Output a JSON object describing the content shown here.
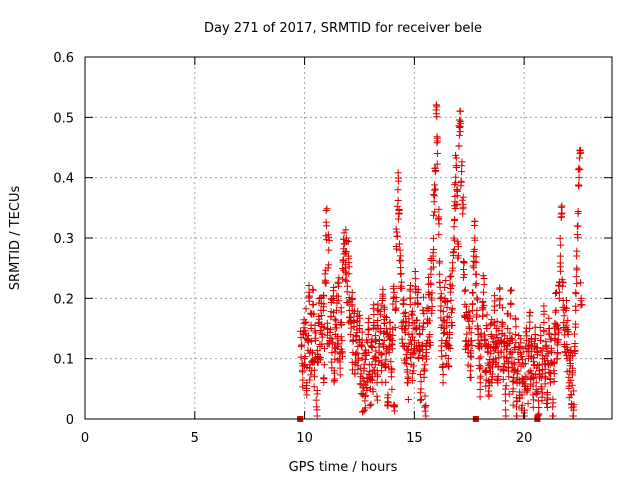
{
  "chart_data": {
    "type": "scatter",
    "title": "Day 271 of 2017, SRMTID for receiver bele",
    "xlabel": "GPS time / hours",
    "ylabel": "SRMTID / TECUs",
    "xlim": [
      0,
      24
    ],
    "ylim": [
      0,
      0.6
    ],
    "xticks": [
      0,
      5,
      10,
      15,
      20
    ],
    "yticks": [
      0,
      0.1,
      0.2,
      0.3,
      0.4,
      0.5,
      0.6
    ],
    "xtick_labels": [
      "0",
      "5",
      "10",
      "15",
      "20"
    ],
    "ytick_labels": [
      "0",
      "0.1",
      "0.2",
      "0.3",
      "0.4",
      "0.5",
      "0.6"
    ],
    "grid": true,
    "series": [
      {
        "name": "SRMTID",
        "marker": "+",
        "color": "#dd0000",
        "x_range": [
          9.8,
          22.6
        ],
        "typical_range": [
          0.03,
          0.22
        ],
        "note": "dense cloud of points; approximate values sampled below",
        "points": [
          [
            9.85,
            0.12
          ],
          [
            9.9,
            0.08
          ],
          [
            9.95,
            0.14
          ],
          [
            10.0,
            0.1
          ],
          [
            10.05,
            0.16
          ],
          [
            10.1,
            0.06
          ],
          [
            10.15,
            0.13
          ],
          [
            10.2,
            0.21
          ],
          [
            10.25,
            0.09
          ],
          [
            10.3,
            0.15
          ],
          [
            10.35,
            0.11
          ],
          [
            10.4,
            0.19
          ],
          [
            10.45,
            0.07
          ],
          [
            10.5,
            0.13
          ],
          [
            10.55,
            0.02
          ],
          [
            10.6,
            0.1
          ],
          [
            10.65,
            0.17
          ],
          [
            10.7,
            0.12
          ],
          [
            10.75,
            0.2
          ],
          [
            10.8,
            0.14
          ],
          [
            10.85,
            0.18
          ],
          [
            10.9,
            0.09
          ],
          [
            10.95,
            0.23
          ],
          [
            11.0,
            0.32
          ],
          [
            11.05,
            0.15
          ],
          [
            11.1,
            0.28
          ],
          [
            11.15,
            0.13
          ],
          [
            11.2,
            0.17
          ],
          [
            11.25,
            0.11
          ],
          [
            11.3,
            0.2
          ],
          [
            11.35,
            0.08
          ],
          [
            11.4,
            0.14
          ],
          [
            11.45,
            0.18
          ],
          [
            11.5,
            0.12
          ],
          [
            11.55,
            0.22
          ],
          [
            11.6,
            0.1
          ],
          [
            11.65,
            0.16
          ],
          [
            11.7,
            0.13
          ],
          [
            11.75,
            0.26
          ],
          [
            11.8,
            0.29
          ],
          [
            11.85,
            0.25
          ],
          [
            11.9,
            0.3
          ],
          [
            11.95,
            0.22
          ],
          [
            12.0,
            0.27
          ],
          [
            12.05,
            0.18
          ],
          [
            12.1,
            0.14
          ],
          [
            12.15,
            0.2
          ],
          [
            12.2,
            0.11
          ],
          [
            12.25,
            0.16
          ],
          [
            12.3,
            0.09
          ],
          [
            12.35,
            0.13
          ],
          [
            12.4,
            0.17
          ],
          [
            12.45,
            0.1
          ],
          [
            12.5,
            0.15
          ],
          [
            12.55,
            0.07
          ],
          [
            12.6,
            0.12
          ],
          [
            12.65,
            0.04
          ],
          [
            12.7,
            0.08
          ],
          [
            12.75,
            0.03
          ],
          [
            12.8,
            0.11
          ],
          [
            12.85,
            0.06
          ],
          [
            12.9,
            0.14
          ],
          [
            12.95,
            0.09
          ],
          [
            13.0,
            0.05
          ],
          [
            13.05,
            0.12
          ],
          [
            13.1,
            0.07
          ],
          [
            13.15,
            0.16
          ],
          [
            13.2,
            0.1
          ],
          [
            13.25,
            0.13
          ],
          [
            13.3,
            0.06
          ],
          [
            13.35,
            0.18
          ],
          [
            13.4,
            0.11
          ],
          [
            13.45,
            0.15
          ],
          [
            13.5,
            0.08
          ],
          [
            13.55,
            0.2
          ],
          [
            13.6,
            0.12
          ],
          [
            13.65,
            0.17
          ],
          [
            13.7,
            0.09
          ],
          [
            13.75,
            0.14
          ],
          [
            13.8,
            0.04
          ],
          [
            13.85,
            0.11
          ],
          [
            13.9,
            0.16
          ],
          [
            13.95,
            0.07
          ],
          [
            14.0,
            0.13
          ],
          [
            14.05,
            0.2
          ],
          [
            14.1,
            0.02
          ],
          [
            14.15,
            0.18
          ],
          [
            14.2,
            0.31
          ],
          [
            14.25,
            0.38
          ],
          [
            14.3,
            0.34
          ],
          [
            14.35,
            0.28
          ],
          [
            14.4,
            0.22
          ],
          [
            14.45,
            0.15
          ],
          [
            14.5,
            0.19
          ],
          [
            14.55,
            0.12
          ],
          [
            14.6,
            0.17
          ],
          [
            14.65,
            0.1
          ],
          [
            14.7,
            0.06
          ],
          [
            14.75,
            0.14
          ],
          [
            14.8,
            0.2
          ],
          [
            14.85,
            0.11
          ],
          [
            14.9,
            0.16
          ],
          [
            14.95,
            0.08
          ],
          [
            15.0,
            0.13
          ],
          [
            15.05,
            0.22
          ],
          [
            15.1,
            0.15
          ],
          [
            15.15,
            0.19
          ],
          [
            15.2,
            0.1
          ],
          [
            15.25,
            0.14
          ],
          [
            15.3,
            0.05
          ],
          [
            15.35,
            0.12
          ],
          [
            15.4,
            0.18
          ],
          [
            15.45,
            0.08
          ],
          [
            15.5,
            0.02
          ],
          [
            15.55,
            0.11
          ],
          [
            15.6,
            0.16
          ],
          [
            15.65,
            0.21
          ],
          [
            15.7,
            0.14
          ],
          [
            15.75,
            0.24
          ],
          [
            15.8,
            0.18
          ],
          [
            15.85,
            0.27
          ],
          [
            15.9,
            0.36
          ],
          [
            15.95,
            0.41
          ],
          [
            16.0,
            0.52
          ],
          [
            16.05,
            0.44
          ],
          [
            16.1,
            0.33
          ],
          [
            16.15,
            0.24
          ],
          [
            16.2,
            0.18
          ],
          [
            16.25,
            0.13
          ],
          [
            16.3,
            0.09
          ],
          [
            16.35,
            0.15
          ],
          [
            16.4,
            0.2
          ],
          [
            16.45,
            0.12
          ],
          [
            16.5,
            0.17
          ],
          [
            16.55,
            0.1
          ],
          [
            16.6,
            0.14
          ],
          [
            16.65,
            0.21
          ],
          [
            16.7,
            0.16
          ],
          [
            16.75,
            0.25
          ],
          [
            16.8,
            0.3
          ],
          [
            16.85,
            0.36
          ],
          [
            16.9,
            0.42
          ],
          [
            16.95,
            0.37
          ],
          [
            17.0,
            0.29
          ],
          [
            17.05,
            0.47
          ],
          [
            17.1,
            0.49
          ],
          [
            17.15,
            0.41
          ],
          [
            17.2,
            0.34
          ],
          [
            17.25,
            0.26
          ],
          [
            17.3,
            0.19
          ],
          [
            17.35,
            0.13
          ],
          [
            17.4,
            0.17
          ],
          [
            17.45,
            0.11
          ],
          [
            17.5,
            0.15
          ],
          [
            17.55,
            0.08
          ],
          [
            17.6,
            0.13
          ],
          [
            17.65,
            0.19
          ],
          [
            17.7,
            0.27
          ],
          [
            17.75,
            0.3
          ],
          [
            17.8,
            0.24
          ],
          [
            17.85,
            0.18
          ],
          [
            17.9,
            0.14
          ],
          [
            17.95,
            0.1
          ],
          [
            18.0,
            0.06
          ],
          [
            18.05,
            0.12
          ],
          [
            18.1,
            0.17
          ],
          [
            18.15,
            0.21
          ],
          [
            18.2,
            0.13
          ],
          [
            18.25,
            0.08
          ],
          [
            18.3,
            0.15
          ],
          [
            18.35,
            0.11
          ],
          [
            18.4,
            0.04
          ],
          [
            18.45,
            0.09
          ],
          [
            18.5,
            0.14
          ],
          [
            18.55,
            0.07
          ],
          [
            18.6,
            0.12
          ],
          [
            18.65,
            0.18
          ],
          [
            18.7,
            0.1
          ],
          [
            18.75,
            0.15
          ],
          [
            18.8,
            0.06
          ],
          [
            18.85,
            0.13
          ],
          [
            18.9,
            0.2
          ],
          [
            18.95,
            0.11
          ],
          [
            19.0,
            0.16
          ],
          [
            19.05,
            0.08
          ],
          [
            19.1,
            0.12
          ],
          [
            19.15,
            0.03
          ],
          [
            19.2,
            0.1
          ],
          [
            19.25,
            0.15
          ],
          [
            19.3,
            0.07
          ],
          [
            19.35,
            0.13
          ],
          [
            19.4,
            0.19
          ],
          [
            19.45,
            0.11
          ],
          [
            19.5,
            0.05
          ],
          [
            19.55,
            0.09
          ],
          [
            19.6,
            0.14
          ],
          [
            19.65,
            0.02
          ],
          [
            19.7,
            0.08
          ],
          [
            19.75,
            0.12
          ],
          [
            19.8,
            0.06
          ],
          [
            19.85,
            0.11
          ],
          [
            19.9,
            0.04
          ],
          [
            19.95,
            0.09
          ],
          [
            20.0,
            0.01
          ],
          [
            20.05,
            0.07
          ],
          [
            20.1,
            0.13
          ],
          [
            20.15,
            0.05
          ],
          [
            20.2,
            0.1
          ],
          [
            20.25,
            0.15
          ],
          [
            20.3,
            0.08
          ],
          [
            20.35,
            0.12
          ],
          [
            20.4,
            0.04
          ],
          [
            20.45,
            0.09
          ],
          [
            20.5,
            0.14
          ],
          [
            20.55,
            0.06
          ],
          [
            20.6,
            0.11
          ],
          [
            20.65,
            0.03
          ],
          [
            20.7,
            0.08
          ],
          [
            20.75,
            0.13
          ],
          [
            20.8,
            0.05
          ],
          [
            20.85,
            0.1
          ],
          [
            20.9,
            0.16
          ],
          [
            20.95,
            0.07
          ],
          [
            21.0,
            0.12
          ],
          [
            21.05,
            0.04
          ],
          [
            21.1,
            0.09
          ],
          [
            21.15,
            0.15
          ],
          [
            21.2,
            0.06
          ],
          [
            21.25,
            0.11
          ],
          [
            21.3,
            0.02
          ],
          [
            21.35,
            0.08
          ],
          [
            21.4,
            0.13
          ],
          [
            21.45,
            0.18
          ],
          [
            21.5,
            0.1
          ],
          [
            21.55,
            0.15
          ],
          [
            21.6,
            0.2
          ],
          [
            21.65,
            0.27
          ],
          [
            21.7,
            0.34
          ],
          [
            21.75,
            0.22
          ],
          [
            21.8,
            0.16
          ],
          [
            21.85,
            0.12
          ],
          [
            21.9,
            0.18
          ],
          [
            21.95,
            0.1
          ],
          [
            22.0,
            0.14
          ],
          [
            22.05,
            0.06
          ],
          [
            22.1,
            0.11
          ],
          [
            22.15,
            0.04
          ],
          [
            22.2,
            0.08
          ],
          [
            22.25,
            0.02
          ],
          [
            22.3,
            0.12
          ],
          [
            22.35,
            0.18
          ],
          [
            22.4,
            0.25
          ],
          [
            22.45,
            0.32
          ],
          [
            22.5,
            0.4
          ],
          [
            22.55,
            0.44
          ],
          [
            22.6,
            0.2
          ]
        ]
      }
    ],
    "baseline_markers": {
      "color": "#dd0000",
      "x": [
        9.8,
        17.8,
        20.6
      ],
      "y": 0
    }
  }
}
